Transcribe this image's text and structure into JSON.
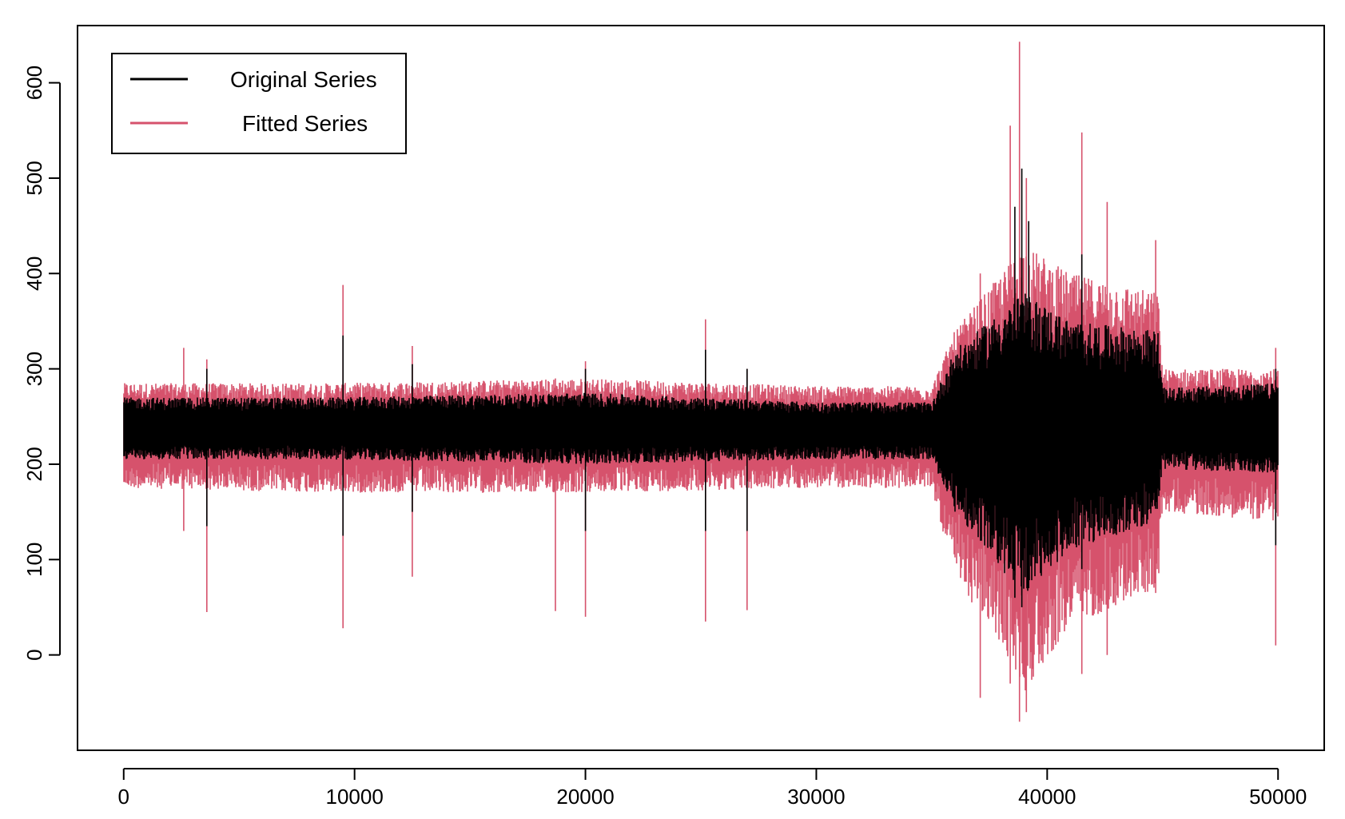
{
  "chart_data": {
    "type": "line",
    "title": "",
    "xlabel": "",
    "ylabel": "",
    "xlim": [
      -2000,
      52000
    ],
    "ylim": [
      -100,
      660
    ],
    "x_ticks": [
      0,
      10000,
      20000,
      30000,
      40000,
      50000
    ],
    "x_tick_labels": [
      "0",
      "10000",
      "20000",
      "30000",
      "40000",
      "50000"
    ],
    "y_ticks": [
      0,
      100,
      200,
      300,
      400,
      500,
      600
    ],
    "y_tick_labels": [
      "0",
      "100",
      "200",
      "300",
      "400",
      "500",
      "600"
    ],
    "grid": false,
    "legend_position": "top-left",
    "series": [
      {
        "name": "Original Series",
        "color": "#000000",
        "baseline": 238,
        "envelope": [
          {
            "x": 0,
            "low": 205,
            "high": 270
          },
          {
            "x": 9000,
            "low": 205,
            "high": 270
          },
          {
            "x": 20000,
            "low": 200,
            "high": 275
          },
          {
            "x": 30000,
            "low": 205,
            "high": 265
          },
          {
            "x": 35000,
            "low": 205,
            "high": 265
          },
          {
            "x": 36000,
            "low": 150,
            "high": 320
          },
          {
            "x": 38000,
            "low": 90,
            "high": 360
          },
          {
            "x": 39000,
            "low": 60,
            "high": 380
          },
          {
            "x": 41000,
            "low": 110,
            "high": 350
          },
          {
            "x": 44800,
            "low": 140,
            "high": 340
          },
          {
            "x": 45000,
            "low": 195,
            "high": 280
          },
          {
            "x": 50000,
            "low": 190,
            "high": 285
          }
        ],
        "spikes": [
          {
            "x": 3600,
            "low": 135,
            "high": 300
          },
          {
            "x": 9500,
            "low": 125,
            "high": 335
          },
          {
            "x": 12500,
            "low": 150,
            "high": 305
          },
          {
            "x": 20000,
            "low": 130,
            "high": 300
          },
          {
            "x": 25200,
            "low": 130,
            "high": 320
          },
          {
            "x": 27000,
            "low": 130,
            "high": 300
          },
          {
            "x": 38600,
            "low": 60,
            "high": 470
          },
          {
            "x": 38900,
            "low": 50,
            "high": 510
          },
          {
            "x": 39200,
            "low": 70,
            "high": 455
          },
          {
            "x": 41500,
            "low": 90,
            "high": 420
          },
          {
            "x": 49900,
            "low": 115,
            "high": 300
          }
        ]
      },
      {
        "name": "Fitted Series",
        "color": "#d6526c",
        "baseline": 238,
        "envelope": [
          {
            "x": 0,
            "low": 175,
            "high": 285
          },
          {
            "x": 9000,
            "low": 170,
            "high": 285
          },
          {
            "x": 20000,
            "low": 170,
            "high": 290
          },
          {
            "x": 30000,
            "low": 175,
            "high": 282
          },
          {
            "x": 35000,
            "low": 175,
            "high": 282
          },
          {
            "x": 36000,
            "low": 80,
            "high": 340
          },
          {
            "x": 38000,
            "low": 10,
            "high": 400
          },
          {
            "x": 39000,
            "low": -40,
            "high": 430
          },
          {
            "x": 41000,
            "low": 30,
            "high": 400
          },
          {
            "x": 44800,
            "low": 70,
            "high": 380
          },
          {
            "x": 45000,
            "low": 150,
            "high": 300
          },
          {
            "x": 50000,
            "low": 140,
            "high": 300
          }
        ],
        "spikes": [
          {
            "x": 2600,
            "low": 130,
            "high": 322
          },
          {
            "x": 3600,
            "low": 45,
            "high": 310
          },
          {
            "x": 9500,
            "low": 28,
            "high": 388
          },
          {
            "x": 12500,
            "low": 82,
            "high": 324
          },
          {
            "x": 18700,
            "low": 46,
            "high": 290
          },
          {
            "x": 20000,
            "low": 40,
            "high": 308
          },
          {
            "x": 25200,
            "low": 35,
            "high": 352
          },
          {
            "x": 27000,
            "low": 47,
            "high": 300
          },
          {
            "x": 37100,
            "low": -45,
            "high": 400
          },
          {
            "x": 38400,
            "low": -30,
            "high": 555
          },
          {
            "x": 38800,
            "low": -70,
            "high": 643
          },
          {
            "x": 39100,
            "low": -60,
            "high": 500
          },
          {
            "x": 41500,
            "low": -20,
            "high": 548
          },
          {
            "x": 42600,
            "low": 0,
            "high": 475
          },
          {
            "x": 44700,
            "low": 65,
            "high": 435
          },
          {
            "x": 49900,
            "low": 10,
            "high": 322
          }
        ]
      }
    ]
  },
  "legend": {
    "items": [
      {
        "label": "Original Series",
        "color": "#000000"
      },
      {
        "label": "Fitted Series",
        "color": "#d6526c"
      }
    ]
  }
}
